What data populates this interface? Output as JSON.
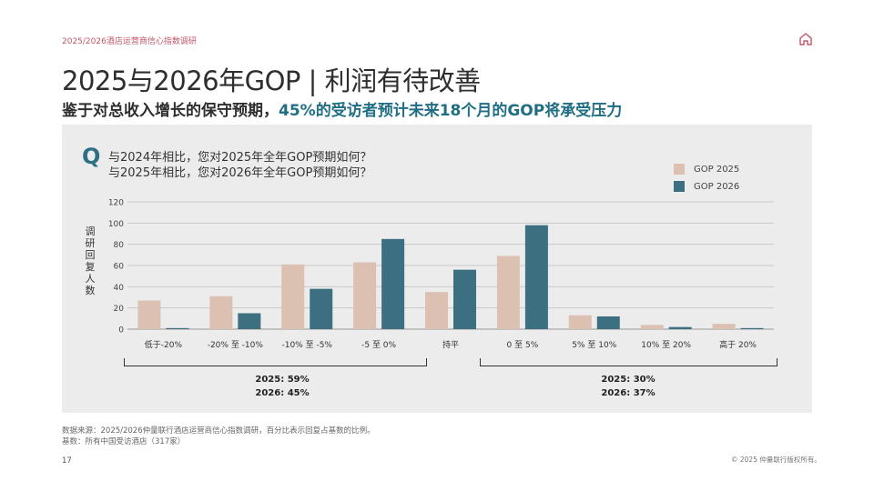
{
  "header": {
    "survey_name": "2025/2026酒店运营商信心指数调研"
  },
  "title": "2025与2026年GOP | 利润有待改善",
  "subtitle": {
    "part1": "鉴于对总收入增长的保守预期，",
    "highlight": "45%的受访者预计未来18个月的GOP将承受压力"
  },
  "question": {
    "mark": "Q",
    "line1": "与2024年相比，您对2025年全年GOP预期如何？",
    "line2": "与2025年相比，您对2026年全年GOP预期如何？"
  },
  "chart_data": {
    "type": "bar",
    "categories": [
      "低于-20%",
      "-20% 至 -10%",
      "-10% 至 -5%",
      "-5 至 0%",
      "持平",
      "0 至 5%",
      "5% 至 10%",
      "10% 至 20%",
      "高于 20%"
    ],
    "series": [
      {
        "name": "GOP 2025",
        "color": "#dcc1b3",
        "values": [
          27,
          31,
          61,
          63,
          35,
          69,
          13,
          4,
          5
        ]
      },
      {
        "name": "GOP 2026",
        "color": "#3c6f80",
        "values": [
          1,
          15,
          38,
          85,
          56,
          98,
          12,
          2,
          1
        ]
      }
    ],
    "ylabel": "调研回复人数",
    "ylim": [
      0,
      120
    ],
    "yticks": [
      0,
      20,
      40,
      60,
      80,
      100,
      120
    ],
    "grid": true,
    "legend_position": "top-right"
  },
  "summary": {
    "left_2025": "2025: 59%",
    "left_2026": "2026: 45%",
    "right_2025": "2025: 30%",
    "right_2026": "2026: 37%"
  },
  "footnotes": {
    "source": "数据来源：2025/2026仲量联行酒店运营商信心指数调研，百分比表示回复占基数的比例。",
    "base": "基数：所有中国受访酒店（317家）"
  },
  "page_number": "17",
  "copyright": "© 2025 仲量联行版权所有。",
  "icons": {
    "home": "home-icon"
  }
}
